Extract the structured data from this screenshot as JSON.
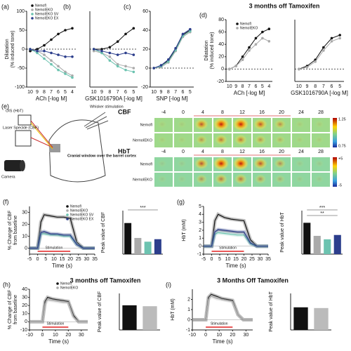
{
  "chart_data": [
    {
      "type": "line",
      "panel": "(a)",
      "categories": [
        "10",
        "9",
        "8",
        "7",
        "6",
        "5",
        "4"
      ],
      "xlabel": "ACh [-log M]",
      "ylabel": [
        "Dilatation",
        "(% induced tone)"
      ],
      "ylim": [
        -100,
        100
      ],
      "yticks": [
        -100,
        -50,
        0,
        50,
        100
      ],
      "markers": true,
      "legend": true,
      "series": [
        {
          "name": "Nemofl",
          "color": "#111111",
          "values": [
            -5,
            0,
            10,
            25,
            40,
            50,
            55
          ]
        },
        {
          "name": "NemoIEKO",
          "color": "#aaaaaa",
          "values": [
            0,
            -5,
            -15,
            -30,
            -45,
            -60,
            -70
          ]
        },
        {
          "name": "NemoIEKO SV",
          "color": "#6cc3b0",
          "values": [
            0,
            -10,
            -25,
            -40,
            -55,
            -65,
            -75
          ]
        },
        {
          "name": "NemoIEKO EX",
          "color": "#2c3e8c",
          "values": [
            0,
            -5,
            -5,
            -10,
            -15,
            -20,
            -20
          ]
        }
      ]
    },
    {
      "type": "line",
      "panel": "(b)",
      "categories": [
        "10",
        "9",
        "8",
        "7",
        "6",
        "5"
      ],
      "xlabel": "GSK1016790A [-log M]",
      "ylim": [
        -100,
        100
      ],
      "markers": true,
      "series": [
        {
          "name": "Nemofl",
          "color": "#111111",
          "values": [
            0,
            0,
            5,
            20,
            40,
            55
          ]
        },
        {
          "name": "NemoIEKO",
          "color": "#aaaaaa",
          "values": [
            -5,
            -10,
            -20,
            -40,
            -45,
            -50
          ]
        },
        {
          "name": "NemoIEKO SV",
          "color": "#6cc3b0",
          "values": [
            0,
            -10,
            -30,
            -45,
            -55,
            -60
          ]
        },
        {
          "name": "NemoIEKO EX",
          "color": "#2c3e8c",
          "values": [
            0,
            -5,
            -10,
            -15,
            -10,
            -15
          ]
        }
      ]
    },
    {
      "type": "line",
      "panel": "(c)",
      "categories": [
        "10",
        "9",
        "8",
        "7",
        "6",
        "5"
      ],
      "xlabel": "SNP [-log M]",
      "ylim": [
        -20,
        60
      ],
      "yticks": [
        -20,
        0,
        20,
        40,
        60
      ],
      "markers": true,
      "series": [
        {
          "name": "Nemofl",
          "color": "#111111",
          "values": [
            0,
            2,
            8,
            20,
            35,
            40
          ]
        },
        {
          "name": "NemoIEKO",
          "color": "#aaaaaa",
          "values": [
            0,
            1,
            6,
            18,
            33,
            38
          ]
        },
        {
          "name": "NemoIEKO SV",
          "color": "#6cc3b0",
          "values": [
            0,
            2,
            7,
            19,
            34,
            39
          ]
        },
        {
          "name": "NemoIEKO EX",
          "color": "#2c3e8c",
          "values": [
            0,
            3,
            9,
            21,
            36,
            41
          ]
        }
      ]
    },
    {
      "type": "line",
      "panel": "(d)",
      "title": "3 months off Tamoxifen",
      "categories": [
        "10",
        "9",
        "8",
        "7",
        "6",
        "5",
        "4"
      ],
      "xlabel": "ACh [-log M]",
      "ylabel": [
        "Dilatation",
        "(% induced tone)"
      ],
      "ylim": [
        -20,
        80
      ],
      "yticks": [
        -20,
        0,
        20,
        40,
        60,
        80
      ],
      "markers": true,
      "legend": true,
      "series": [
        {
          "name": "Nemofl",
          "color": "#111111",
          "values": [
            0,
            5,
            20,
            35,
            50,
            60,
            65
          ]
        },
        {
          "name": "NemoIEKO",
          "color": "#aaaaaa",
          "values": [
            0,
            5,
            15,
            30,
            40,
            50,
            45
          ]
        }
      ]
    },
    {
      "type": "line",
      "categories": [
        "10",
        "9",
        "8",
        "7",
        "6",
        "5"
      ],
      "xlabel": "GSK1016790A [-log M]",
      "ylim": [
        -20,
        80
      ],
      "markers": true,
      "series": [
        {
          "name": "Nemofl",
          "color": "#111111",
          "values": [
            0,
            5,
            15,
            35,
            50,
            55
          ]
        },
        {
          "name": "NemoIEKO",
          "color": "#aaaaaa",
          "values": [
            0,
            3,
            12,
            30,
            45,
            50
          ]
        }
      ]
    },
    {
      "type": "line",
      "panel": "(f)",
      "x": [
        -5,
        0,
        2,
        4,
        8,
        12,
        16,
        20,
        24,
        28,
        35
      ],
      "xlim": [
        -5,
        35
      ],
      "xticks": [
        -5,
        0,
        5,
        10,
        15,
        20,
        25,
        30,
        35
      ],
      "xlabel": "Time (s)",
      "ylabel": [
        "% Change of CBF",
        "from baseline"
      ],
      "ylim": [
        -5,
        35
      ],
      "yticks": [
        0,
        10,
        20,
        30
      ],
      "legend": true,
      "stimulation": {
        "label": "Stimulation",
        "range": [
          0,
          20
        ]
      },
      "series": [
        {
          "name": "Nemofl",
          "color": "#111111",
          "values": [
            0,
            0,
            22,
            28,
            27,
            26,
            26,
            25,
            5,
            0,
            0
          ]
        },
        {
          "name": "NemoIEKO",
          "color": "#aaaaaa",
          "values": [
            0,
            0,
            14,
            13,
            12,
            11,
            11,
            11,
            3,
            0,
            0
          ]
        },
        {
          "name": "NemoIEKO SV",
          "color": "#6cc3b0",
          "values": [
            0,
            0,
            12,
            12,
            11,
            11,
            10,
            10,
            3,
            0,
            0
          ]
        },
        {
          "name": "NemoIEKO EX",
          "color": "#2c3e8c",
          "values": [
            0,
            0,
            13,
            14,
            12,
            12,
            11,
            11,
            3,
            0,
            0
          ]
        }
      ]
    },
    {
      "type": "bar",
      "ylabel": [
        "Peak value of CBF"
      ],
      "ylim": [
        0,
        35
      ],
      "values": [
        25,
        13,
        10,
        12
      ],
      "colors": [
        "#111111",
        "#aaaaaa",
        "#6cc3b0",
        "#2c3e8c"
      ],
      "annotations": [
        "***"
      ]
    },
    {
      "type": "line",
      "panel": "(g)",
      "x": [
        -5,
        0,
        2,
        4,
        8,
        12,
        16,
        20,
        24,
        28,
        35
      ],
      "xlim": [
        -5,
        35
      ],
      "xticks": [
        -5,
        0,
        5,
        10,
        15,
        20,
        25,
        30,
        35
      ],
      "xlabel": "Time (s)",
      "ylabel": [
        "HbT (mM)"
      ],
      "ylim": [
        -1,
        5
      ],
      "yticks": [
        -1,
        0,
        1,
        2,
        3,
        4,
        5
      ],
      "stimulation": {
        "label": "Stimulation",
        "range": [
          0,
          20
        ]
      },
      "series": [
        {
          "name": "Nemofl",
          "color": "#111111",
          "values": [
            0,
            0,
            3.2,
            4,
            3.6,
            3.4,
            3.3,
            3.2,
            0.8,
            0,
            0
          ]
        },
        {
          "name": "NemoIEKO",
          "color": "#aaaaaa",
          "values": [
            0,
            0,
            1.8,
            2,
            1.9,
            1.8,
            1.7,
            1.7,
            0.4,
            0,
            0
          ]
        },
        {
          "name": "NemoIEKO SV",
          "color": "#6cc3b0",
          "values": [
            0,
            0,
            1.5,
            1.7,
            1.6,
            1.5,
            1.4,
            1.4,
            0.3,
            0,
            0
          ]
        },
        {
          "name": "NemoIEKO EX",
          "color": "#2c3e8c",
          "values": [
            0,
            0,
            1.8,
            2.1,
            2,
            1.9,
            1.8,
            1.8,
            0.4,
            0,
            0
          ]
        }
      ]
    },
    {
      "type": "bar",
      "ylabel": [
        "Peak value of HbT"
      ],
      "ylim": [
        0,
        5
      ],
      "values": [
        3.6,
        2.1,
        1.7,
        2.2
      ],
      "colors": [
        "#111111",
        "#aaaaaa",
        "#6cc3b0",
        "#2c3e8c"
      ],
      "annotations": [
        "***",
        "**"
      ]
    },
    {
      "type": "line",
      "panel": "(h)",
      "title": "3 months off Tamoxifen",
      "x": [
        -10,
        0,
        2,
        4,
        8,
        12,
        16,
        20,
        24,
        28,
        35
      ],
      "xlim": [
        -10,
        35
      ],
      "xticks": [
        -10,
        0,
        10,
        20,
        30
      ],
      "xlabel": "Time (s)",
      "ylabel": [
        "% Change of CBF",
        "from baseline"
      ],
      "ylim": [
        -10,
        40
      ],
      "yticks": [
        -10,
        0,
        10,
        20,
        30,
        40
      ],
      "legend": true,
      "stimulation": {
        "label": "Stimulation",
        "range": [
          0,
          20
        ]
      },
      "series": [
        {
          "name": "Nemofl",
          "color": "#111111",
          "values": [
            0,
            0,
            25,
            30,
            28,
            27,
            26,
            25,
            8,
            0,
            0
          ]
        },
        {
          "name": "NemoIEKO",
          "color": "#aaaaaa",
          "values": [
            0,
            0,
            22,
            27,
            26,
            25,
            24,
            24,
            6,
            0,
            0
          ]
        }
      ]
    },
    {
      "type": "bar",
      "ylabel": [
        "Peak value of CBF"
      ],
      "ylim": [
        0,
        40
      ],
      "values": [
        27,
        26
      ],
      "colors": [
        "#111111",
        "#bbbbbb"
      ]
    },
    {
      "type": "line",
      "panel": "(i)",
      "title": "3 Months Off Tamoxifen",
      "x": [
        -10,
        0,
        2,
        4,
        8,
        12,
        16,
        20,
        24,
        28,
        35
      ],
      "xlim": [
        -10,
        35
      ],
      "xticks": [
        -10,
        0,
        10,
        20,
        30
      ],
      "xlabel": "Time (s)",
      "ylabel": [
        "HbT (mM)"
      ],
      "ylim": [
        -1,
        3
      ],
      "yticks": [
        -1,
        0,
        1,
        2
      ],
      "stimulation": {
        "label": "Stimulation",
        "range": [
          0,
          20
        ]
      },
      "series": [
        {
          "name": "Nemofl",
          "color": "#111111",
          "values": [
            0,
            0,
            2.2,
            2.5,
            2.3,
            2.1,
            2,
            1.9,
            0.5,
            0,
            0
          ]
        },
        {
          "name": "NemoIEKO",
          "color": "#aaaaaa",
          "values": [
            0,
            0,
            2,
            2.3,
            2.1,
            2,
            1.9,
            1.8,
            0.5,
            0,
            0
          ]
        }
      ]
    },
    {
      "type": "bar",
      "ylabel": [
        "Peak value of HbT"
      ],
      "ylim": [
        0,
        5
      ],
      "values": [
        3.1,
        3
      ],
      "colors": [
        "#111111",
        "#bbbbbb"
      ]
    }
  ],
  "panel_e": {
    "label": "(e)",
    "setup": {
      "ois": "OIS (HbT)",
      "whisker": "Whisker stimulation",
      "laser": "Laser Speckle (CBF)",
      "camera": "Camera",
      "window": "Cranial window over the barrel cortex"
    },
    "maps": [
      {
        "name": "CBF",
        "times": [
          -4,
          0,
          4,
          8,
          12,
          16,
          20,
          24,
          28
        ],
        "rows": [
          "Nemofl",
          "NemoIEKO"
        ],
        "scale": [
          "1.25",
          "0.75"
        ]
      },
      {
        "name": "HbT",
        "times": [
          -4,
          0,
          4,
          8,
          12,
          16,
          20,
          24,
          28
        ],
        "rows": [
          "Nemofl",
          "NemoIEKO"
        ],
        "scale": [
          "+5",
          "-5"
        ]
      }
    ]
  }
}
